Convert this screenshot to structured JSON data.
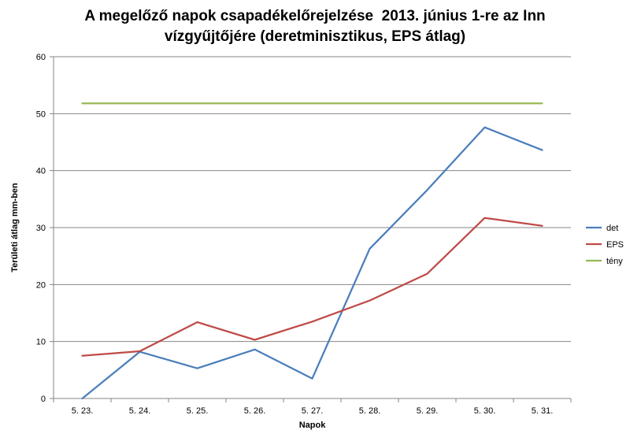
{
  "chart_data": {
    "type": "line",
    "title_line1": "A megelőző napok csapadékelőrejelzése  2013. június 1-re az Inn",
    "title_line2": "vízgyűjtőjére (deretminisztikus, EPS átlag)",
    "xlabel": "Napok",
    "ylabel": "Területi átlag mm-ben",
    "categories": [
      "5. 23.",
      "5. 24.",
      "5. 25.",
      "5. 26.",
      "5. 27.",
      "5. 28.",
      "5. 29.",
      "5. 30.",
      "5. 31."
    ],
    "ylim": [
      0,
      60
    ],
    "yticks": [
      0,
      10,
      20,
      30,
      40,
      50,
      60
    ],
    "grid": true,
    "legend_position": "right",
    "series": [
      {
        "name": "det",
        "color": "#4a7ebb",
        "values": [
          0,
          8.2,
          5.3,
          8.6,
          3.5,
          26.3,
          36.6,
          47.6,
          43.6
        ]
      },
      {
        "name": "EPS",
        "color": "#be4b48",
        "values": [
          7.5,
          8.3,
          13.4,
          10.3,
          13.5,
          17.2,
          21.9,
          31.7,
          30.3
        ]
      },
      {
        "name": "tény",
        "color": "#98b954",
        "values": [
          51.8,
          51.8,
          51.8,
          51.8,
          51.8,
          51.8,
          51.8,
          51.8,
          51.8
        ]
      }
    ]
  }
}
